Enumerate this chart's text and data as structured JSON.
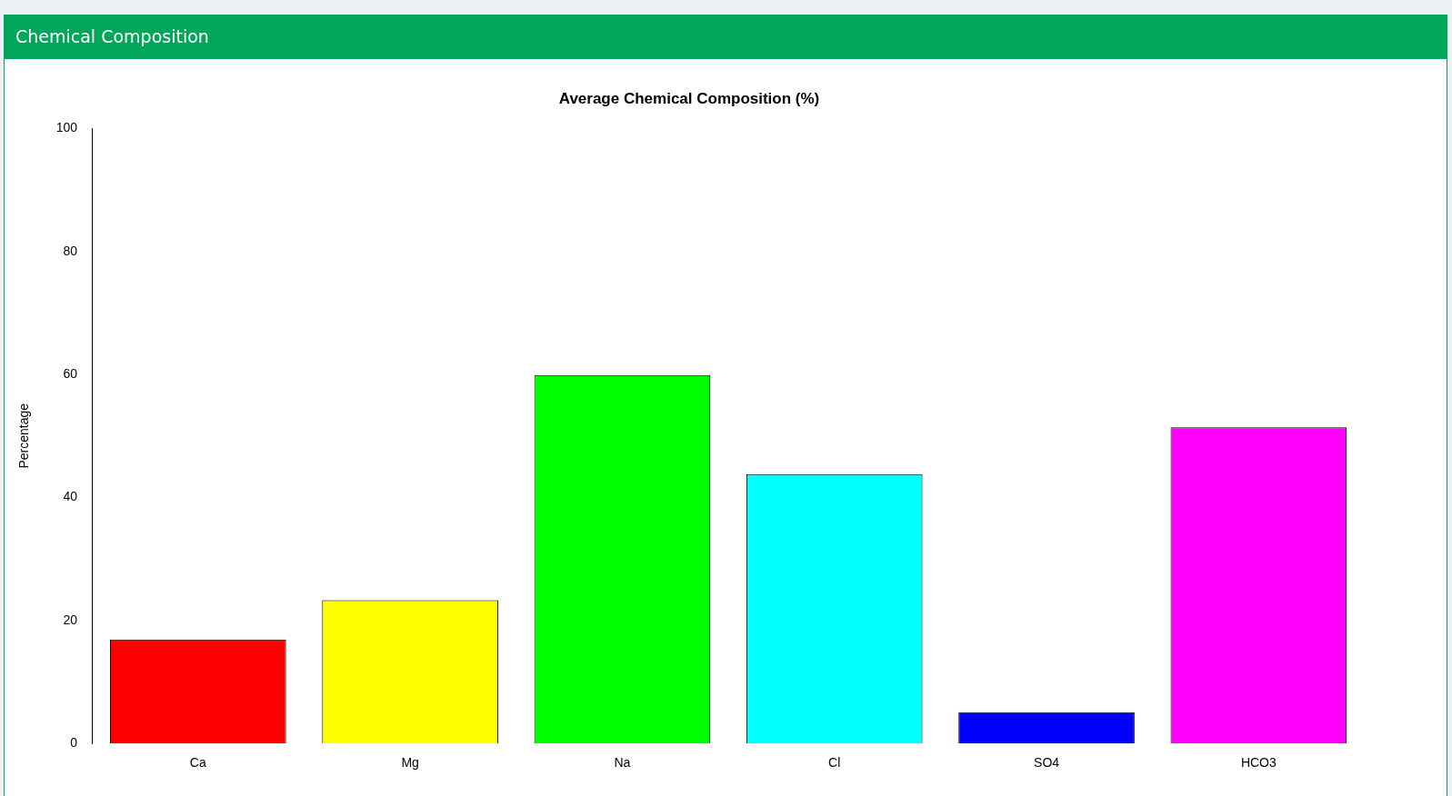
{
  "chart_data": {
    "type": "bar",
    "title": "Chemical Composition",
    "subtitle": "Average Chemical Composition (%)",
    "ylabel": "Percentage",
    "categories": [
      "Ca",
      "Mg",
      "Na",
      "Cl",
      "SO4",
      "HCO3"
    ],
    "values": [
      16.9,
      23.3,
      59.9,
      43.8,
      5.1,
      51.4
    ],
    "colors": [
      "#ff0000",
      "#ffff00",
      "#00ff00",
      "#00ffff",
      "#0000ff",
      "#ff00ff"
    ],
    "ylim": [
      0,
      100
    ],
    "yticks": [
      0,
      20,
      40,
      60,
      80,
      100
    ],
    "grid": false,
    "legend": false
  }
}
